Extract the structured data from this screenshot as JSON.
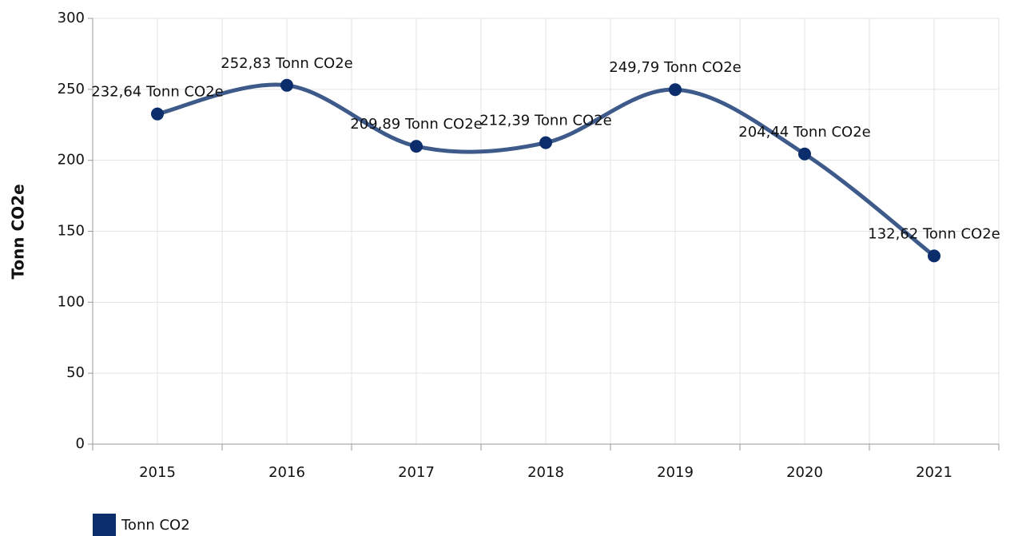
{
  "chart_data": {
    "type": "line",
    "y_label": "Tonn CO2e",
    "categories": [
      "2015",
      "2016",
      "2017",
      "2018",
      "2019",
      "2020",
      "2021"
    ],
    "series": [
      {
        "name": "Tonn CO2",
        "color": "#0b2d6b",
        "line_color": "#3d5a8a",
        "values": [
          232.64,
          252.83,
          209.89,
          212.39,
          249.79,
          204.44,
          132.62
        ],
        "value_labels": [
          "232,64 Tonn CO2e",
          "252,83 Tonn CO2e",
          "209,89 Tonn CO2e",
          "212,39 Tonn CO2e",
          "249,79 Tonn CO2e",
          "204,44 Tonn CO2e",
          "132,62 Tonn CO2e"
        ]
      }
    ],
    "ylim": [
      0,
      300
    ],
    "yticks": [
      0,
      50,
      100,
      150,
      200,
      250,
      300
    ],
    "grid": true,
    "smooth": true,
    "legend": "bottom-left"
  }
}
